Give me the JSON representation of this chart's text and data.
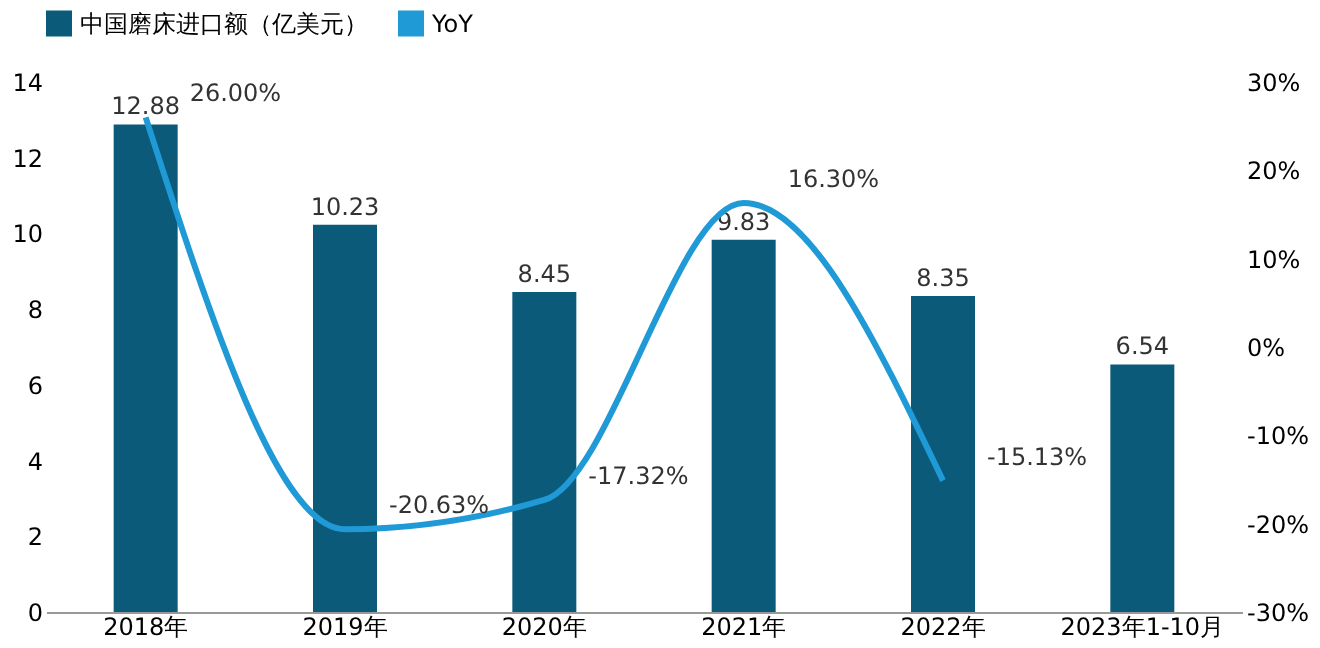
{
  "chart_data": {
    "type": "bar",
    "categories": [
      "2018年",
      "2019年",
      "2020年",
      "2021年",
      "2022年",
      "2023年1-10月"
    ],
    "series": [
      {
        "name": "中国磨床进口额（亿美元）",
        "color": "#0b5a7a",
        "values": [
          12.88,
          10.23,
          8.45,
          9.83,
          8.35,
          6.54
        ],
        "value_labels": [
          "12.88",
          "10.23",
          "8.45",
          "9.83",
          "8.35",
          "6.54"
        ]
      },
      {
        "name": "YoY",
        "type": "line",
        "axis": "y2",
        "color": "#1f9ad6",
        "values": [
          26.0,
          -20.63,
          -17.32,
          16.3,
          -15.13,
          null
        ],
        "value_labels": [
          "26.00%",
          "-20.63%",
          "-17.32%",
          "16.30%",
          "-15.13%",
          null
        ]
      }
    ],
    "ylim": [
      0,
      14
    ],
    "yticks": [
      0,
      2,
      4,
      6,
      8,
      10,
      12,
      14
    ],
    "y2lim": [
      -30,
      30
    ],
    "y2ticks": [
      {
        "value": -30,
        "label": "-30%"
      },
      {
        "value": -20,
        "label": "-20%"
      },
      {
        "value": -10,
        "label": "-10%"
      },
      {
        "value": 0,
        "label": "0%"
      },
      {
        "value": 10,
        "label": "10%"
      },
      {
        "value": 20,
        "label": "20%"
      },
      {
        "value": 30,
        "label": "30%"
      }
    ],
    "legend": "top",
    "grid": false,
    "line_style": "solid",
    "marker": "none"
  }
}
